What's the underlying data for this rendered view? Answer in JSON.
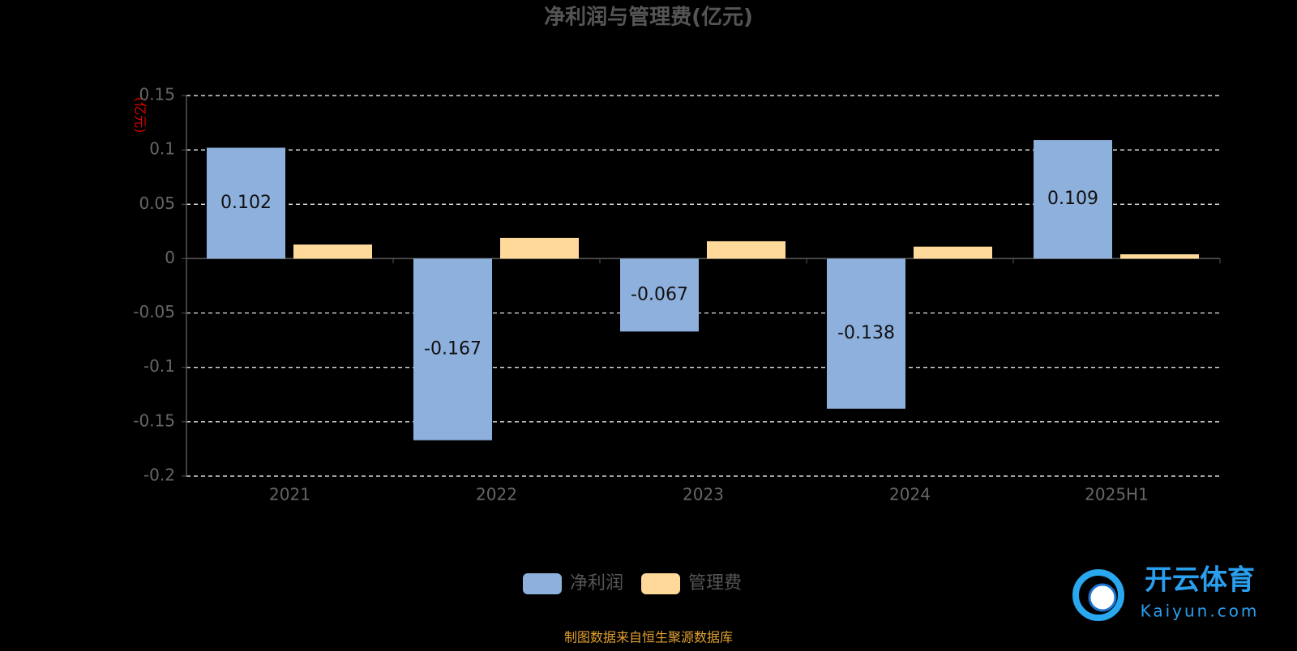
{
  "chart_data": {
    "type": "bar",
    "title": "净利润与管理费(亿元)",
    "y_label": "(亿元)",
    "categories": [
      "2021",
      "2022",
      "2023",
      "2024",
      "2025H1"
    ],
    "series": [
      {
        "name": "净利润",
        "color": "#8eb0dd",
        "values": [
          0.102,
          -0.167,
          -0.067,
          -0.138,
          0.109
        ]
      },
      {
        "name": "管理费",
        "color": "#ffd99a",
        "values": [
          0.013,
          0.019,
          0.016,
          0.011,
          0.004
        ]
      }
    ],
    "data_labels_series": 0,
    "ylim": [
      -0.2,
      0.15
    ],
    "yticks": [
      -0.2,
      -0.15,
      -0.1,
      -0.05,
      0,
      0.05,
      0.1,
      0.15
    ],
    "grid": true
  },
  "footer": "制图数据来自恒生聚源数据库",
  "watermark": {
    "name": "开云体育",
    "url": "Kaiyun.com"
  }
}
